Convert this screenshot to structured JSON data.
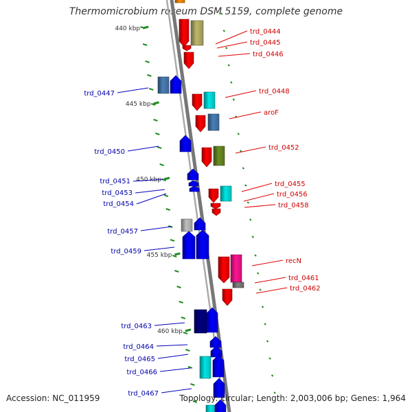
{
  "title": "Thermomicrobium roseum DSM 5159, complete genome",
  "footer": {
    "accession": "Accession: NC_011959",
    "summary": "Topology: circular; Length: 2,003,006 bp; Genes: 1,964"
  },
  "scale_labels": [
    "440 kbp",
    "445 kbp",
    "450 kbp",
    "455 kbp",
    "460 kbp"
  ],
  "strand_colors": {
    "forward": "#ff0000",
    "reverse": "#0000ff",
    "cyan": "#00e5e5",
    "steelblue": "#4a7fb5",
    "olive": "#6b8e23",
    "khaki": "#bdb76b",
    "magenta": "#ff1493",
    "navy": "#000080",
    "gray": "#808080",
    "silver": "#c0c0c0",
    "orange": "#ff8c00",
    "scale_tick": "#228b22"
  },
  "gene_labels": {
    "forward": [
      "trd_0444",
      "trd_0445",
      "trd_0446",
      "trd_0448",
      "aroF",
      "trd_0452",
      "trd_0455",
      "trd_0456",
      "trd_0458",
      "recN",
      "trd_0461",
      "trd_0462"
    ],
    "reverse": [
      "trd_0447",
      "trd_0450",
      "trd_0451",
      "trd_0453",
      "trd_0454",
      "trd_0457",
      "trd_0459",
      "trd_0463",
      "trd_0464",
      "trd_0465",
      "trd_0466",
      "trd_0467"
    ]
  }
}
